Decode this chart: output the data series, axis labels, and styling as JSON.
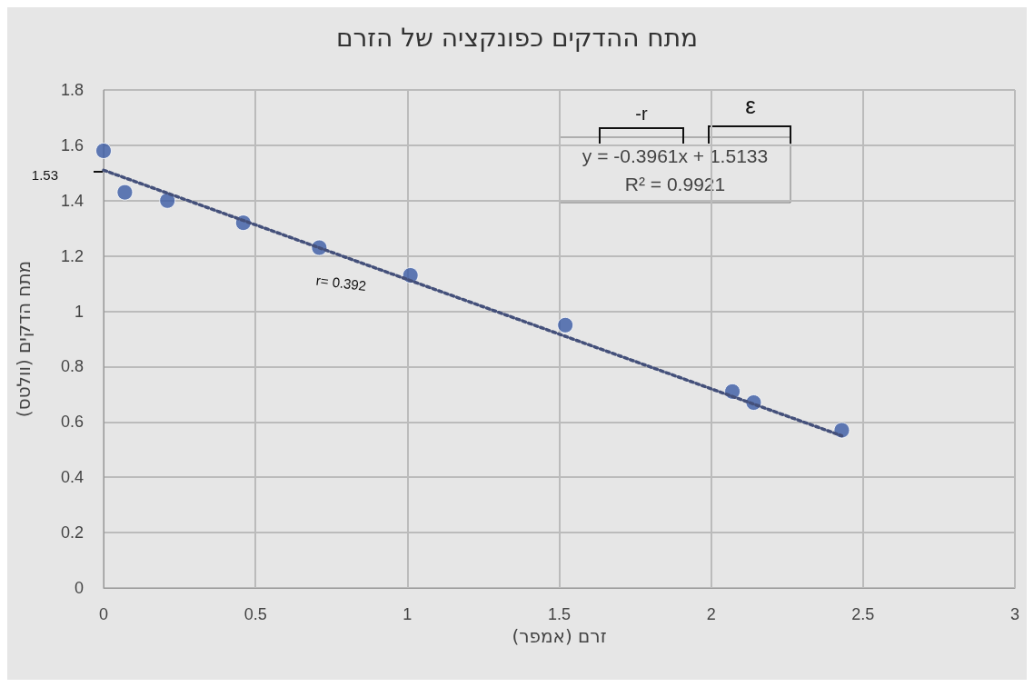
{
  "chart_data": {
    "type": "scatter",
    "title": "מתח ההדקים כפונקציה של הזרם",
    "xlabel": "זרם (אמפר)",
    "ylabel": "מתח הדקים (וולטס)",
    "series": [
      {
        "color": "#3b5ba5",
        "x": [
          0,
          0.07,
          0.21,
          0.46,
          0.71,
          1.01,
          1.52,
          2.07,
          2.14,
          2.43
        ],
        "values": [
          1.58,
          1.43,
          1.4,
          1.32,
          1.23,
          1.13,
          0.95,
          0.71,
          0.67,
          0.57
        ],
        "marker": "circle"
      },
      {
        "type": "line",
        "color": "#44507a",
        "x": [
          0,
          2.43
        ],
        "values": [
          1.51,
          0.55
        ],
        "line_style": "dotted",
        "marker": "none"
      }
    ],
    "annotations": [
      "y = -0.3961x + 1.5133",
      "R² = 0.9921",
      "-r",
      "ε",
      "1.53",
      "r= 0.392"
    ],
    "xlim": [
      0,
      3
    ],
    "xticks": [
      0,
      0.5,
      1,
      1.5,
      2,
      2.5,
      3
    ],
    "ylim": [
      0,
      1.8
    ],
    "yticks": [
      0,
      0.2,
      0.4,
      0.6,
      0.8,
      1,
      1.2,
      1.4,
      1.6,
      1.8
    ],
    "grid": true
  }
}
